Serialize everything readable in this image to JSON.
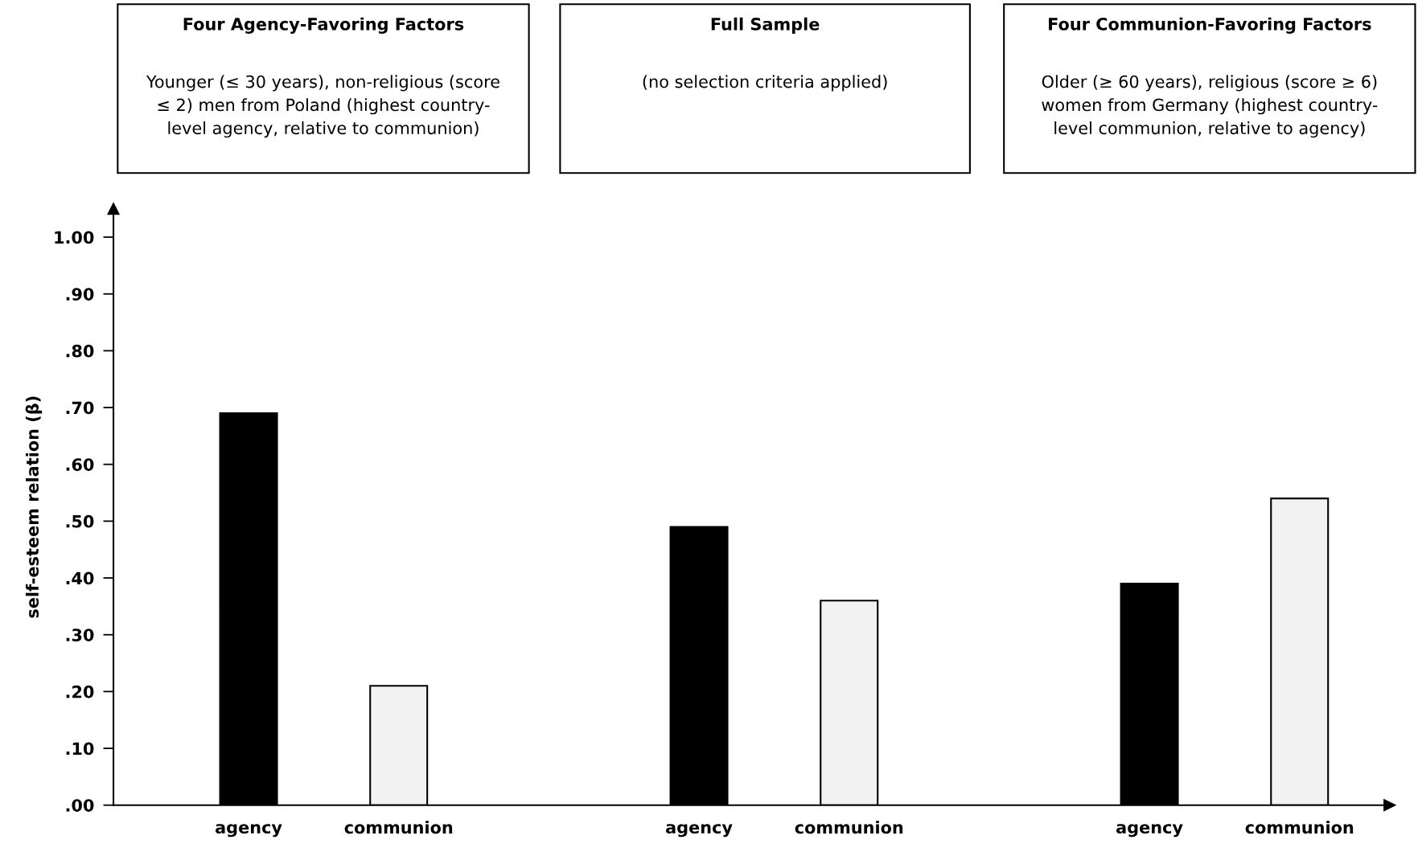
{
  "chart_data": {
    "type": "bar",
    "categories": [
      "agency",
      "communion",
      null,
      "agency",
      "communion",
      null,
      "agency",
      "communion"
    ],
    "values": [
      0.69,
      0.21,
      null,
      0.49,
      0.36,
      null,
      0.39,
      0.54
    ],
    "colors": [
      "#000000",
      "#f2f2f2",
      null,
      "#000000",
      "#f2f2f2",
      null,
      "#000000",
      "#f2f2f2"
    ],
    "ylabel": "self-esteem relation (β)",
    "ylim": [
      0,
      1.05
    ],
    "yticks": [
      {
        "value": 0,
        "label": ".00"
      },
      {
        "value": 0.1,
        "label": ".10"
      },
      {
        "value": 0.2,
        "label": ".20"
      },
      {
        "value": 0.3,
        "label": ".30"
      },
      {
        "value": 0.4,
        "label": ".40"
      },
      {
        "value": 0.5,
        "label": ".50"
      },
      {
        "value": 0.6,
        "label": ".60"
      },
      {
        "value": 0.7,
        "label": ".70"
      },
      {
        "value": 0.8,
        "label": ".80"
      },
      {
        "value": 0.9,
        "label": ".90"
      },
      {
        "value": 1.0,
        "label": "1.00"
      }
    ],
    "grid": false,
    "legend": false,
    "annotations": [
      "Four Agency-Favoring Factors",
      "Younger (≤ 30 years), non-religious (score\n≤ 2) men from Poland (highest country-\nlevel agency, relative to communion)",
      "Full Sample",
      "(no selection criteria applied)",
      "Four Communion-Favoring Factors",
      "Older (≥ 60 years), religious (score ≥ 6)\nwomen from Germany (highest country-\nlevel communion, relative to agency)"
    ]
  }
}
